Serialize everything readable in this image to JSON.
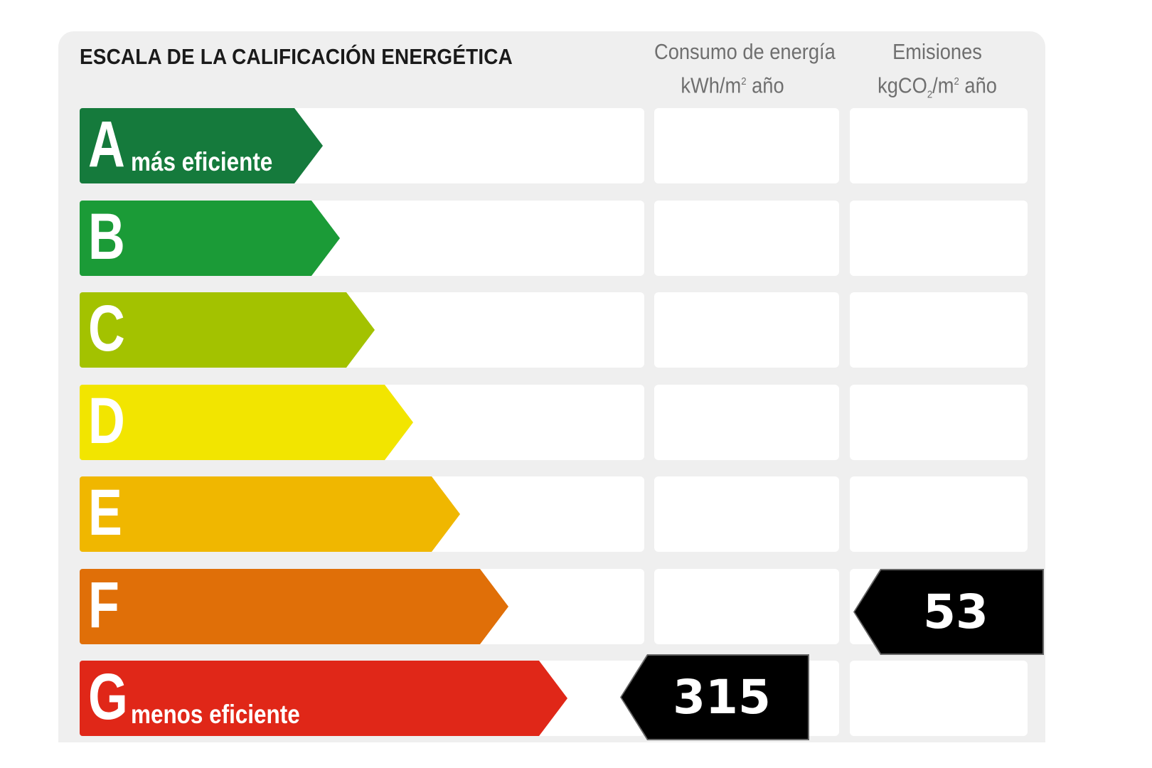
{
  "title": "ESCALA DE LA CALIFICACIÓN ENERGÉTICA",
  "columns": {
    "consumption": {
      "line1": "Consumo de energía",
      "line2_prefix": "kWh/m",
      "line2_sup": "2",
      "line2_suffix": " año"
    },
    "emissions": {
      "line1": "Emisiones",
      "line2_prefix": "kgCO",
      "line2_sub": "2",
      "line2_mid": "/m",
      "line2_sup": "2",
      "line2_suffix": " año"
    }
  },
  "ratings": [
    {
      "letter": "A",
      "sublabel": "más eficiente",
      "color": "#157a3c"
    },
    {
      "letter": "B",
      "sublabel": "",
      "color": "#1b9b37"
    },
    {
      "letter": "C",
      "sublabel": "",
      "color": "#a3c200"
    },
    {
      "letter": "D",
      "sublabel": "",
      "color": "#f2e500"
    },
    {
      "letter": "E",
      "sublabel": "",
      "color": "#f0b700"
    },
    {
      "letter": "F",
      "sublabel": "",
      "color": "#e06f08"
    },
    {
      "letter": "G",
      "sublabel": "menos eficiente",
      "color": "#e02718"
    }
  ],
  "results": {
    "consumption": {
      "value": "315",
      "rating": "G"
    },
    "emissions": {
      "value": "53",
      "rating": "F"
    }
  }
}
